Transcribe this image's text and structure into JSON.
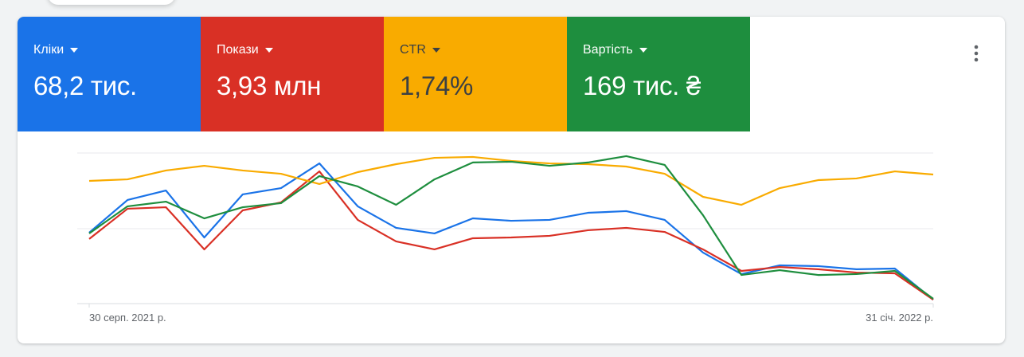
{
  "metrics": [
    {
      "label": "Кліки",
      "value": "68,2 тис.",
      "color": "#1a73e8"
    },
    {
      "label": "Покази",
      "value": "3,93 млн",
      "color": "#d93025"
    },
    {
      "label": "CTR",
      "value": "1,74%",
      "color": "#f9ab00"
    },
    {
      "label": "Вартість",
      "value": "169 тис. ₴",
      "color": "#1e8e3e"
    }
  ],
  "chart_data": {
    "type": "line",
    "categories": [
      "30 серп. 2021 р.",
      null,
      null,
      null,
      null,
      null,
      null,
      null,
      null,
      null,
      null,
      null,
      null,
      null,
      null,
      null,
      null,
      null,
      null,
      null,
      null,
      null,
      "31 січ. 2022 р."
    ],
    "ylim": [
      0,
      100
    ],
    "series": [
      {
        "color": "#1a73e8",
        "values": [
          47.1,
          68.8,
          75.1,
          43.9,
          72.5,
          76.7,
          93.1,
          64.6,
          50.3,
          46.6,
          56.6,
          55.0,
          55.6,
          60.3,
          61.4,
          55.6,
          33.9,
          19.6,
          25.4,
          24.9,
          22.8,
          23.3,
          2.6
        ]
      },
      {
        "color": "#d93025",
        "values": [
          42.9,
          63.0,
          64.0,
          36.0,
          61.9,
          67.2,
          87.8,
          55.6,
          41.3,
          36.0,
          43.4,
          43.9,
          45.0,
          48.7,
          50.3,
          47.6,
          36.0,
          21.7,
          24.3,
          22.8,
          20.6,
          20.1,
          2.6
        ]
      },
      {
        "color": "#f9ab00",
        "values": [
          81.5,
          82.5,
          88.4,
          91.5,
          88.4,
          86.2,
          79.4,
          87.3,
          92.6,
          96.8,
          97.4,
          94.7,
          93.1,
          92.6,
          91.0,
          86.2,
          70.9,
          65.6,
          76.7,
          82.0,
          83.1,
          87.8,
          85.7
        ]
      },
      {
        "color": "#1e8e3e",
        "values": [
          46.6,
          64.6,
          67.7,
          56.6,
          64.0,
          66.7,
          84.7,
          77.8,
          65.6,
          82.5,
          93.7,
          94.2,
          91.5,
          93.7,
          97.9,
          92.1,
          58.7,
          19.0,
          22.2,
          19.0,
          19.6,
          21.7,
          3.2
        ]
      }
    ]
  }
}
